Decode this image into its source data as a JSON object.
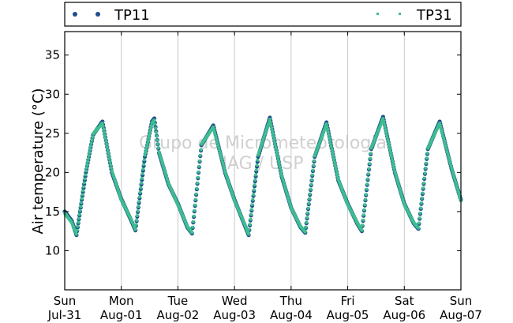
{
  "chart_data": {
    "type": "scatter",
    "ylabel": "Air temperature (°C)",
    "ylim": [
      5,
      38
    ],
    "yticks": [
      10,
      15,
      20,
      25,
      30,
      35
    ],
    "xlim": [
      "2011-07-31T00:00",
      "2011-08-07T00:00"
    ],
    "xticks": [
      {
        "date": "2011-07-31",
        "day": "Sun",
        "label": "Jul-31"
      },
      {
        "date": "2011-08-01",
        "day": "Mon",
        "label": "Aug-01"
      },
      {
        "date": "2011-08-02",
        "day": "Tue",
        "label": "Aug-02"
      },
      {
        "date": "2011-08-03",
        "day": "Wed",
        "label": "Aug-03"
      },
      {
        "date": "2011-08-04",
        "day": "Thu",
        "label": "Aug-04"
      },
      {
        "date": "2011-08-05",
        "day": "Fri",
        "label": "Aug-05"
      },
      {
        "date": "2011-08-06",
        "day": "Sat",
        "label": "Aug-06"
      },
      {
        "date": "2011-08-07",
        "day": "Sun",
        "label": "Aug-07"
      }
    ],
    "grid": "vertical",
    "legend": "top",
    "watermark": [
      "Grupo de Micrometeorologia",
      "IAG / USP"
    ],
    "series": [
      {
        "name": "TP11",
        "color": "#1f4e8c",
        "marker": "circle",
        "points": [
          [
            "2011-07-31T00:00",
            15.0
          ],
          [
            "2011-07-31T03:00",
            13.8
          ],
          [
            "2011-07-31T05:00",
            12.0
          ],
          [
            "2011-07-31T09:00",
            20.0
          ],
          [
            "2011-07-31T12:00",
            24.8
          ],
          [
            "2011-07-31T16:00",
            26.5
          ],
          [
            "2011-07-31T20:00",
            20.0
          ],
          [
            "2011-08-01T00:00",
            16.6
          ],
          [
            "2011-08-01T04:00",
            14.0
          ],
          [
            "2011-08-01T06:00",
            12.6
          ],
          [
            "2011-08-01T10:00",
            22.0
          ],
          [
            "2011-08-01T13:00",
            26.5
          ],
          [
            "2011-08-01T14:00",
            26.9
          ],
          [
            "2011-08-01T16:00",
            22.5
          ],
          [
            "2011-08-01T20:00",
            18.5
          ],
          [
            "2011-08-02T00:00",
            16.0
          ],
          [
            "2011-08-02T04:00",
            13.0
          ],
          [
            "2011-08-02T06:00",
            12.2
          ],
          [
            "2011-08-02T10:00",
            23.5
          ],
          [
            "2011-08-02T15:00",
            26.0
          ],
          [
            "2011-08-02T20:00",
            20.0
          ],
          [
            "2011-08-03T00:00",
            16.5
          ],
          [
            "2011-08-03T04:00",
            13.5
          ],
          [
            "2011-08-03T06:00",
            12.0
          ],
          [
            "2011-08-03T10:00",
            22.0
          ],
          [
            "2011-08-03T15:00",
            27.0
          ],
          [
            "2011-08-03T20:00",
            19.5
          ],
          [
            "2011-08-04T00:00",
            15.5
          ],
          [
            "2011-08-04T04:00",
            13.0
          ],
          [
            "2011-08-04T06:00",
            12.3
          ],
          [
            "2011-08-04T10:00",
            22.0
          ],
          [
            "2011-08-04T15:00",
            26.4
          ],
          [
            "2011-08-04T20:00",
            19.0
          ],
          [
            "2011-08-05T00:00",
            16.0
          ],
          [
            "2011-08-05T04:00",
            13.5
          ],
          [
            "2011-08-05T06:00",
            12.5
          ],
          [
            "2011-08-05T10:00",
            23.0
          ],
          [
            "2011-08-05T15:00",
            27.1
          ],
          [
            "2011-08-05T20:00",
            20.0
          ],
          [
            "2011-08-06T00:00",
            16.0
          ],
          [
            "2011-08-06T04:00",
            13.5
          ],
          [
            "2011-08-06T06:00",
            12.8
          ],
          [
            "2011-08-06T10:00",
            23.0
          ],
          [
            "2011-08-06T15:00",
            26.5
          ],
          [
            "2011-08-06T20:00",
            20.5
          ],
          [
            "2011-08-07T00:00",
            16.5
          ]
        ]
      },
      {
        "name": "TP31",
        "color": "#3dbf8f",
        "marker": "square",
        "points": [
          [
            "2011-07-31T00:00",
            14.8
          ],
          [
            "2011-07-31T03:00",
            13.6
          ],
          [
            "2011-07-31T05:00",
            12.1
          ],
          [
            "2011-07-31T09:00",
            20.2
          ],
          [
            "2011-07-31T12:00",
            24.9
          ],
          [
            "2011-07-31T16:00",
            26.3
          ],
          [
            "2011-07-31T20:00",
            20.2
          ],
          [
            "2011-08-01T00:00",
            16.5
          ],
          [
            "2011-08-01T04:00",
            14.1
          ],
          [
            "2011-08-01T06:00",
            12.7
          ],
          [
            "2011-08-01T10:00",
            22.2
          ],
          [
            "2011-08-01T13:00",
            26.3
          ],
          [
            "2011-08-01T14:00",
            26.7
          ],
          [
            "2011-08-01T16:00",
            22.6
          ],
          [
            "2011-08-01T20:00",
            18.6
          ],
          [
            "2011-08-02T00:00",
            15.9
          ],
          [
            "2011-08-02T04:00",
            13.1
          ],
          [
            "2011-08-02T06:00",
            12.3
          ],
          [
            "2011-08-02T10:00",
            23.6
          ],
          [
            "2011-08-02T15:00",
            25.8
          ],
          [
            "2011-08-02T20:00",
            20.1
          ],
          [
            "2011-08-03T00:00",
            16.4
          ],
          [
            "2011-08-03T04:00",
            13.6
          ],
          [
            "2011-08-03T06:00",
            12.1
          ],
          [
            "2011-08-03T10:00",
            22.2
          ],
          [
            "2011-08-03T15:00",
            26.8
          ],
          [
            "2011-08-03T20:00",
            19.6
          ],
          [
            "2011-08-04T00:00",
            15.5
          ],
          [
            "2011-08-04T04:00",
            13.1
          ],
          [
            "2011-08-04T06:00",
            12.4
          ],
          [
            "2011-08-04T10:00",
            22.1
          ],
          [
            "2011-08-04T15:00",
            26.2
          ],
          [
            "2011-08-04T20:00",
            19.1
          ],
          [
            "2011-08-05T00:00",
            15.9
          ],
          [
            "2011-08-05T04:00",
            13.6
          ],
          [
            "2011-08-05T06:00",
            12.6
          ],
          [
            "2011-08-05T10:00",
            23.1
          ],
          [
            "2011-08-05T15:00",
            26.9
          ],
          [
            "2011-08-05T20:00",
            20.1
          ],
          [
            "2011-08-06T00:00",
            15.9
          ],
          [
            "2011-08-06T04:00",
            13.6
          ],
          [
            "2011-08-06T06:00",
            12.9
          ],
          [
            "2011-08-06T10:00",
            23.1
          ],
          [
            "2011-08-06T15:00",
            26.3
          ],
          [
            "2011-08-06T20:00",
            20.6
          ],
          [
            "2011-08-07T00:00",
            16.4
          ]
        ]
      }
    ]
  }
}
